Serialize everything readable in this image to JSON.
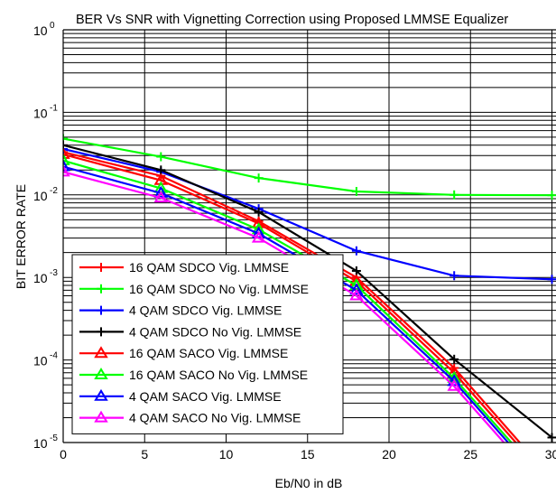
{
  "chart_data": {
    "type": "line",
    "title": "BER Vs SNR with Vignetting Correction using Proposed LMMSE Equalizer",
    "xlabel": "Eb/N0 in dB",
    "ylabel": "BIT ERROR RATE",
    "xlim": [
      0,
      30
    ],
    "ylim": [
      1e-05,
      1
    ],
    "yscale": "log",
    "grid": true,
    "legend_position": "bottom-left",
    "x_ticks": [
      0,
      5,
      10,
      15,
      20,
      25,
      30
    ],
    "x_tick_labels": [
      "0",
      "5",
      "10",
      "15",
      "20",
      "25",
      "30"
    ],
    "y_ticks": [
      {
        "exp": -5,
        "base": "10",
        "sup": "-5"
      },
      {
        "exp": -4,
        "base": "10",
        "sup": "-4"
      },
      {
        "exp": -3,
        "base": "10",
        "sup": "-3"
      },
      {
        "exp": -2,
        "base": "10",
        "sup": "-2"
      },
      {
        "exp": -1,
        "base": "10",
        "sup": "-1"
      },
      {
        "exp": 0,
        "base": "10",
        "sup": "0"
      }
    ],
    "series": [
      {
        "name": "16 QAM SDCO Vig. LMMSE",
        "color": "#ff0000",
        "marker": "plus",
        "x": [
          0,
          6,
          12,
          18,
          24,
          30
        ],
        "y": [
          0.033,
          0.017,
          0.0048,
          0.001,
          8e-05,
          3.6e-06
        ]
      },
      {
        "name": "16 QAM SDCO No Vig. LMMSE",
        "color": "#00ff00",
        "marker": "plus",
        "x": [
          0,
          6,
          12,
          18,
          24,
          30
        ],
        "y": [
          0.048,
          0.029,
          0.016,
          0.011,
          0.01,
          0.0099
        ]
      },
      {
        "name": "4 QAM SDCO  Vig. LMMSE",
        "color": "#0000ff",
        "marker": "plus",
        "x": [
          0,
          6,
          12,
          18,
          24,
          30
        ],
        "y": [
          0.036,
          0.019,
          0.0068,
          0.0021,
          0.00105,
          0.00095
        ]
      },
      {
        "name": "4 QAM SDCO No Vig. LMMSE",
        "color": "#000000",
        "marker": "plus",
        "x": [
          0,
          6,
          12,
          18,
          24,
          30
        ],
        "y": [
          0.04,
          0.02,
          0.0062,
          0.0012,
          0.000102,
          1.15e-05
        ]
      },
      {
        "name": "16 QAM SACO Vig. LMMSE",
        "color": "#ff0000",
        "marker": "triangle",
        "x": [
          0,
          6,
          12,
          18,
          24,
          30
        ],
        "y": [
          0.031,
          0.015,
          0.0045,
          0.0009,
          7e-05,
          3.2e-06
        ]
      },
      {
        "name": "16 QAM SACO No Vig. LMMSE",
        "color": "#00ff00",
        "marker": "triangle",
        "x": [
          0,
          6,
          12,
          18,
          24,
          30
        ],
        "y": [
          0.026,
          0.012,
          0.0038,
          0.0008,
          6e-05,
          2.8e-06
        ]
      },
      {
        "name": "4 QAM SACO Vig. LMMSE",
        "color": "#0000ff",
        "marker": "triangle",
        "x": [
          0,
          6,
          12,
          18,
          24,
          30
        ],
        "y": [
          0.022,
          0.0105,
          0.0034,
          0.0007,
          5.5e-05,
          2.5e-06
        ]
      },
      {
        "name": "4 QAM SACO No Vig. LMMSE",
        "color": "#ff00ff",
        "marker": "triangle",
        "x": [
          0,
          6,
          12,
          18,
          24,
          30
        ],
        "y": [
          0.019,
          0.0092,
          0.003,
          0.0006,
          4.8e-05,
          2.2e-06
        ]
      }
    ]
  }
}
